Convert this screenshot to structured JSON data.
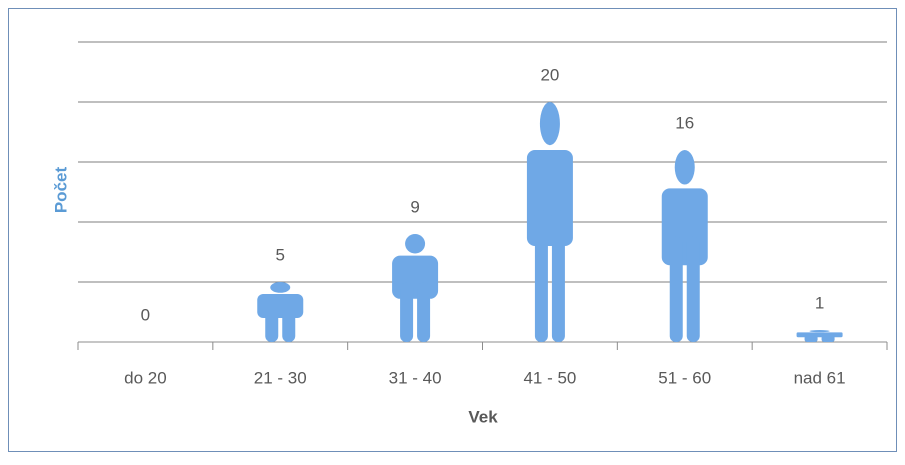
{
  "chart_data": {
    "type": "pictograph",
    "categories": [
      "do 20",
      "21 - 30",
      "31 - 40",
      "41 - 50",
      "51 - 60",
      "nad 61"
    ],
    "values": [
      0,
      5,
      9,
      20,
      16,
      1
    ],
    "color": "#6fa8e6",
    "ylabel": "Počet",
    "xlabel": "Vek",
    "ylim": [
      0,
      25
    ],
    "yticks": [
      0,
      5,
      10,
      15,
      20,
      25
    ],
    "grid": true
  }
}
